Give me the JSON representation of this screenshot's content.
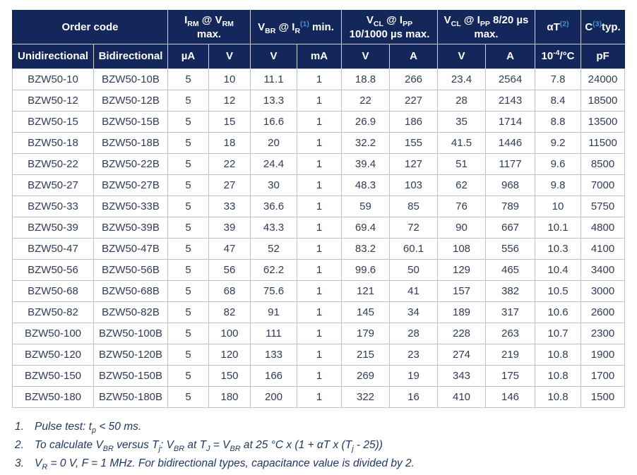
{
  "colors": {
    "header_background": "#14275a",
    "header_text": "#ffffff",
    "footnote_ref_blue": "#4392d4",
    "body_text": "#2f3b57",
    "grid_line": "#bcc2cb",
    "footnote_text": "#1f3864"
  },
  "table": {
    "header_top": [
      {
        "colspan": 2,
        "parts": [
          {
            "t": "Order code"
          }
        ]
      },
      {
        "colspan": 2,
        "parts": [
          {
            "t": "I"
          },
          {
            "t": "RM",
            "s": "sub"
          },
          {
            "t": " @ V"
          },
          {
            "t": "RM",
            "s": "sub"
          },
          {
            "br": true
          },
          {
            "t": "max."
          }
        ]
      },
      {
        "colspan": 2,
        "parts": [
          {
            "t": "V"
          },
          {
            "t": "BR",
            "s": "sub"
          },
          {
            "t": " @ I"
          },
          {
            "t": "R",
            "s": "sub"
          },
          {
            "t": "(1)",
            "s": "supb"
          },
          {
            "t": " min."
          }
        ]
      },
      {
        "colspan": 2,
        "parts": [
          {
            "t": "V"
          },
          {
            "t": "CL",
            "s": "sub"
          },
          {
            "t": " @ I"
          },
          {
            "t": "PP",
            "s": "sub"
          },
          {
            "br": true
          },
          {
            "t": "10/1000 µs max."
          }
        ]
      },
      {
        "colspan": 2,
        "parts": [
          {
            "t": "V"
          },
          {
            "t": "CL",
            "s": "sub"
          },
          {
            "t": " @ I"
          },
          {
            "t": "PP",
            "s": "sub"
          },
          {
            "t": " 8/20 µs"
          },
          {
            "br": true
          },
          {
            "t": "max."
          }
        ]
      },
      {
        "colspan": 1,
        "parts": [
          {
            "t": "αT"
          },
          {
            "t": "(2)",
            "s": "supb"
          }
        ]
      },
      {
        "colspan": 1,
        "parts": [
          {
            "t": "C"
          },
          {
            "t": "(3)",
            "s": "supb"
          },
          {
            "t": "typ."
          }
        ]
      }
    ],
    "header_units": [
      {
        "parts": [
          {
            "t": "Unidirectional"
          }
        ]
      },
      {
        "parts": [
          {
            "t": "Bidirectional"
          }
        ]
      },
      {
        "parts": [
          {
            "t": "µA"
          }
        ]
      },
      {
        "parts": [
          {
            "t": "V"
          }
        ]
      },
      {
        "parts": [
          {
            "t": "V"
          }
        ]
      },
      {
        "parts": [
          {
            "t": "mA"
          }
        ]
      },
      {
        "parts": [
          {
            "t": "V"
          }
        ]
      },
      {
        "parts": [
          {
            "t": "A"
          }
        ]
      },
      {
        "parts": [
          {
            "t": "V"
          }
        ]
      },
      {
        "parts": [
          {
            "t": "A"
          }
        ]
      },
      {
        "parts": [
          {
            "t": "10"
          },
          {
            "t": "-4",
            "s": "sup"
          },
          {
            "t": "/°C"
          }
        ]
      },
      {
        "parts": [
          {
            "t": "pF"
          }
        ]
      }
    ],
    "rows": [
      [
        "BZW50-10",
        "BZW50-10B",
        "5",
        "10",
        "11.1",
        "1",
        "18.8",
        "266",
        "23.4",
        "2564",
        "7.8",
        "24000"
      ],
      [
        "BZW50-12",
        "BZW50-12B",
        "5",
        "12",
        "13.3",
        "1",
        "22",
        "227",
        "28",
        "2143",
        "8.4",
        "18500"
      ],
      [
        "BZW50-15",
        "BZW50-15B",
        "5",
        "15",
        "16.6",
        "1",
        "26.9",
        "186",
        "35",
        "1714",
        "8.8",
        "13500"
      ],
      [
        "BZW50-18",
        "BZW50-18B",
        "5",
        "18",
        "20",
        "1",
        "32.2",
        "155",
        "41.5",
        "1446",
        "9.2",
        "11500"
      ],
      [
        "BZW50-22",
        "BZW50-22B",
        "5",
        "22",
        "24.4",
        "1",
        "39.4",
        "127",
        "51",
        "1177",
        "9.6",
        "8500"
      ],
      [
        "BZW50-27",
        "BZW50-27B",
        "5",
        "27",
        "30",
        "1",
        "48.3",
        "103",
        "62",
        "968",
        "9.8",
        "7000"
      ],
      [
        "BZW50-33",
        "BZW50-33B",
        "5",
        "33",
        "36.6",
        "1",
        "59",
        "85",
        "76",
        "789",
        "10",
        "5750"
      ],
      [
        "BZW50-39",
        "BZW50-39B",
        "5",
        "39",
        "43.3",
        "1",
        "69.4",
        "72",
        "90",
        "667",
        "10.1",
        "4800"
      ],
      [
        "BZW50-47",
        "BZW50-47B",
        "5",
        "47",
        "52",
        "1",
        "83.2",
        "60.1",
        "108",
        "556",
        "10.3",
        "4100"
      ],
      [
        "BZW50-56",
        "BZW50-56B",
        "5",
        "56",
        "62.2",
        "1",
        "99.6",
        "50",
        "129",
        "465",
        "10.4",
        "3400"
      ],
      [
        "BZW50-68",
        "BZW50-68B",
        "5",
        "68",
        "75.6",
        "1",
        "121",
        "41",
        "157",
        "382",
        "10.5",
        "3000"
      ],
      [
        "BZW50-82",
        "BZW50-82B",
        "5",
        "82",
        "91",
        "1",
        "145",
        "34",
        "189",
        "317",
        "10.6",
        "2600"
      ],
      [
        "BZW50-100",
        "BZW50-100B",
        "5",
        "100",
        "111",
        "1",
        "179",
        "28",
        "228",
        "263",
        "10.7",
        "2300"
      ],
      [
        "BZW50-120",
        "BZW50-120B",
        "5",
        "120",
        "133",
        "1",
        "215",
        "23",
        "274",
        "219",
        "10.8",
        "1900"
      ],
      [
        "BZW50-150",
        "BZW50-150B",
        "5",
        "150",
        "166",
        "1",
        "269",
        "19",
        "343",
        "175",
        "10.8",
        "1700"
      ],
      [
        "BZW50-180",
        "BZW50-180B",
        "5",
        "180",
        "200",
        "1",
        "322",
        "16",
        "410",
        "146",
        "10.8",
        "1500"
      ]
    ]
  },
  "footnotes": [
    {
      "num": "1.",
      "parts": [
        {
          "t": "Pulse test: t"
        },
        {
          "t": "p",
          "s": "sub"
        },
        {
          "t": " < 50 ms."
        }
      ]
    },
    {
      "num": "2.",
      "parts": [
        {
          "t": "To calculate V"
        },
        {
          "t": "BR",
          "s": "sub"
        },
        {
          "t": " versus T"
        },
        {
          "t": "j",
          "s": "sub"
        },
        {
          "t": ": V"
        },
        {
          "t": "BR",
          "s": "sub"
        },
        {
          "t": " at T"
        },
        {
          "t": "J",
          "s": "sub"
        },
        {
          "t": " = V"
        },
        {
          "t": "BR",
          "s": "sub"
        },
        {
          "t": " at 25 °C x (1 + αT x (T"
        },
        {
          "t": "j",
          "s": "sub"
        },
        {
          "t": " - 25))"
        }
      ]
    },
    {
      "num": "3.",
      "parts": [
        {
          "t": "V"
        },
        {
          "t": "R",
          "s": "sub"
        },
        {
          "t": " = 0 V, F = 1 MHz. For bidirectional types, capacitance value is divided by 2."
        }
      ]
    }
  ]
}
